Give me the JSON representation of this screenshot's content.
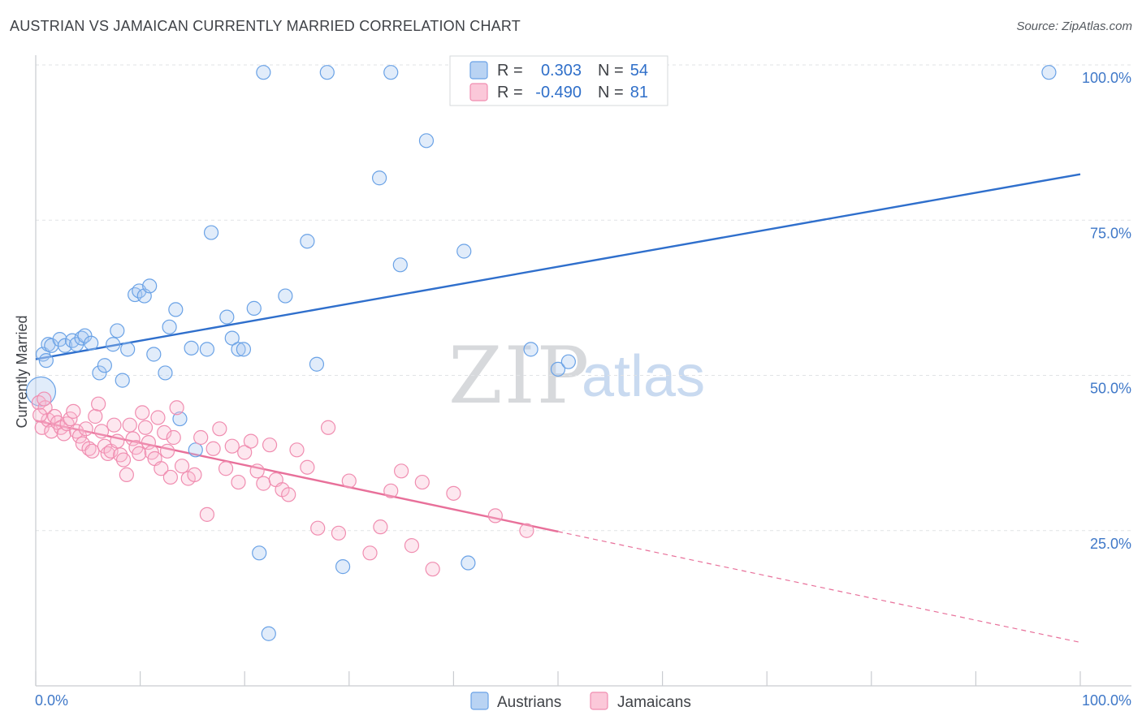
{
  "header": {
    "title": "AUSTRIAN VS JAMAICAN CURRENTLY MARRIED CORRELATION CHART",
    "source": "Source: ZipAtlas.com"
  },
  "watermark": {
    "part1": "ZIP",
    "part2": "atlas"
  },
  "legend": {
    "rows": [
      {
        "r_label": "R =",
        "r_value": "0.303",
        "n_label": "N =",
        "n_value": "54",
        "color": "#6aa2e6"
      },
      {
        "r_label": "R =",
        "r_value": "-0.490",
        "n_label": "N =",
        "n_value": "81",
        "color": "#f08db0"
      }
    ]
  },
  "bottom_legend": {
    "items": [
      "Austrians",
      "Jamaicans"
    ]
  },
  "chart_data": {
    "type": "scatter",
    "title": "AUSTRIAN VS JAMAICAN CURRENTLY MARRIED CORRELATION CHART",
    "xlabel": "",
    "ylabel": "Currently Married",
    "xlim": [
      0,
      100
    ],
    "ylim": [
      0,
      100
    ],
    "x_tick_labels": [
      "0.0%",
      "100.0%"
    ],
    "y_tick_labels": [
      "25.0%",
      "50.0%",
      "75.0%",
      "100.0%"
    ],
    "y_ticks": [
      25,
      50,
      75,
      100
    ],
    "grid": true,
    "series": [
      {
        "name": "Austrians",
        "color": "#6aa2e6",
        "line_color": "#2f6fcc",
        "R": 0.303,
        "N": 54,
        "trend": {
          "x0": 0,
          "y0": 52.6,
          "x1": 100,
          "y1": 82.4,
          "dashed_from": null
        },
        "points": [
          [
            0.5,
            47.4
          ],
          [
            0.7,
            53.4
          ],
          [
            1.2,
            55.0
          ],
          [
            1.5,
            54.8
          ],
          [
            2.3,
            55.8
          ],
          [
            2.8,
            54.8
          ],
          [
            3.5,
            55.6
          ],
          [
            3.9,
            55.0
          ],
          [
            4.4,
            56.0
          ],
          [
            4.7,
            56.4
          ],
          [
            5.3,
            55.2
          ],
          [
            6.1,
            50.4
          ],
          [
            6.6,
            51.6
          ],
          [
            7.4,
            55.0
          ],
          [
            7.8,
            57.2
          ],
          [
            8.3,
            49.2
          ],
          [
            8.8,
            54.2
          ],
          [
            9.5,
            63.0
          ],
          [
            9.9,
            63.6
          ],
          [
            10.4,
            62.8
          ],
          [
            10.9,
            64.4
          ],
          [
            11.3,
            53.4
          ],
          [
            12.4,
            50.4
          ],
          [
            12.8,
            57.8
          ],
          [
            13.4,
            60.6
          ],
          [
            13.8,
            43.0
          ],
          [
            14.9,
            54.4
          ],
          [
            15.3,
            38.0
          ],
          [
            16.4,
            54.2
          ],
          [
            16.8,
            73.0
          ],
          [
            18.3,
            59.4
          ],
          [
            18.8,
            56.0
          ],
          [
            19.4,
            54.2
          ],
          [
            19.9,
            54.2
          ],
          [
            20.9,
            60.8
          ],
          [
            21.4,
            21.4
          ],
          [
            21.8,
            98.8
          ],
          [
            22.3,
            8.4
          ],
          [
            23.9,
            62.8
          ],
          [
            26.0,
            71.6
          ],
          [
            26.9,
            51.8
          ],
          [
            27.9,
            98.8
          ],
          [
            29.4,
            19.2
          ],
          [
            32.9,
            81.8
          ],
          [
            34.0,
            98.8
          ],
          [
            34.9,
            67.8
          ],
          [
            37.4,
            87.8
          ],
          [
            41.0,
            70.0
          ],
          [
            41.4,
            19.8
          ],
          [
            47.4,
            54.2
          ],
          [
            50.0,
            51.0
          ],
          [
            51.0,
            52.2
          ],
          [
            97.0,
            98.8
          ],
          [
            1.0,
            52.4
          ]
        ]
      },
      {
        "name": "Jamaicans",
        "color": "#f08db0",
        "line_color": "#e8709a",
        "R": -0.49,
        "N": 81,
        "trend": {
          "x0": 0,
          "y0": 42.7,
          "x1": 100,
          "y1": 7.0,
          "dashed_from": 50.0
        },
        "points": [
          [
            0.3,
            45.6
          ],
          [
            0.6,
            41.6
          ],
          [
            0.9,
            44.8
          ],
          [
            1.2,
            42.8
          ],
          [
            1.5,
            41.0
          ],
          [
            1.8,
            43.4
          ],
          [
            2.1,
            42.4
          ],
          [
            2.4,
            41.6
          ],
          [
            2.7,
            40.6
          ],
          [
            3.0,
            42.2
          ],
          [
            3.3,
            43.0
          ],
          [
            3.6,
            44.2
          ],
          [
            3.9,
            41.0
          ],
          [
            4.2,
            40.2
          ],
          [
            4.5,
            39.0
          ],
          [
            4.8,
            41.4
          ],
          [
            5.1,
            38.2
          ],
          [
            5.4,
            37.8
          ],
          [
            5.7,
            43.4
          ],
          [
            6.0,
            45.4
          ],
          [
            6.3,
            41.0
          ],
          [
            6.6,
            38.6
          ],
          [
            6.9,
            37.4
          ],
          [
            7.2,
            37.8
          ],
          [
            7.5,
            42.0
          ],
          [
            7.8,
            39.4
          ],
          [
            8.1,
            37.2
          ],
          [
            8.4,
            36.4
          ],
          [
            8.7,
            34.0
          ],
          [
            9.0,
            42.0
          ],
          [
            9.3,
            39.8
          ],
          [
            9.6,
            38.4
          ],
          [
            9.9,
            37.4
          ],
          [
            10.2,
            44.0
          ],
          [
            10.5,
            41.6
          ],
          [
            10.8,
            39.2
          ],
          [
            11.1,
            37.6
          ],
          [
            11.4,
            36.6
          ],
          [
            11.7,
            43.2
          ],
          [
            12.0,
            35.0
          ],
          [
            12.3,
            40.8
          ],
          [
            12.6,
            37.8
          ],
          [
            12.9,
            33.6
          ],
          [
            13.2,
            40.0
          ],
          [
            13.5,
            44.8
          ],
          [
            14.0,
            35.4
          ],
          [
            14.6,
            33.4
          ],
          [
            15.2,
            34.0
          ],
          [
            15.8,
            40.0
          ],
          [
            16.4,
            27.6
          ],
          [
            17.0,
            38.2
          ],
          [
            17.6,
            41.4
          ],
          [
            18.2,
            35.0
          ],
          [
            18.8,
            38.6
          ],
          [
            19.4,
            32.8
          ],
          [
            20.0,
            37.6
          ],
          [
            20.6,
            39.4
          ],
          [
            21.2,
            34.6
          ],
          [
            21.8,
            32.6
          ],
          [
            22.4,
            38.8
          ],
          [
            23.0,
            33.2
          ],
          [
            23.6,
            31.6
          ],
          [
            24.2,
            30.8
          ],
          [
            25.0,
            38.0
          ],
          [
            26.0,
            35.2
          ],
          [
            27.0,
            25.4
          ],
          [
            28.0,
            41.6
          ],
          [
            29.0,
            24.6
          ],
          [
            30.0,
            33.0
          ],
          [
            32.0,
            21.4
          ],
          [
            33.0,
            25.6
          ],
          [
            34.0,
            31.4
          ],
          [
            35.0,
            34.6
          ],
          [
            36.0,
            22.6
          ],
          [
            37.0,
            32.8
          ],
          [
            38.0,
            18.8
          ],
          [
            40.0,
            31.0
          ],
          [
            44.0,
            27.4
          ],
          [
            47.0,
            25.0
          ],
          [
            0.4,
            43.6
          ],
          [
            0.8,
            46.2
          ]
        ]
      }
    ]
  }
}
